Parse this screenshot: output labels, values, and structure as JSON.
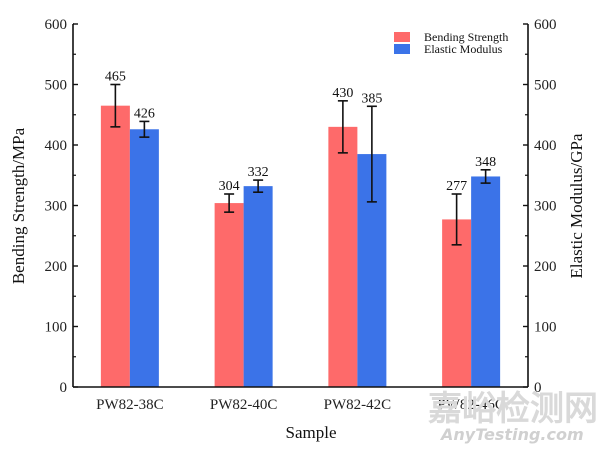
{
  "chart_data": {
    "type": "bar",
    "title": "",
    "xlabel": "Sample",
    "ylabel": "Bending Strength/MPa",
    "y2label": "Elastic Modulus/GPa",
    "categories": [
      "PW82-38C",
      "PW82-40C",
      "PW82-42C",
      "PW82-46C"
    ],
    "ylim": [
      0,
      600
    ],
    "y2lim": [
      0,
      600
    ],
    "yticks": [
      0,
      100,
      200,
      300,
      400,
      500,
      600
    ],
    "y2ticks": [
      0,
      100,
      200,
      300,
      400,
      500,
      600
    ],
    "grid": false,
    "legend_position": "top-right",
    "series": [
      {
        "name": "Bending Strength",
        "axis": "left",
        "color": "#fe6a6a",
        "values": [
          465,
          304,
          430,
          277
        ],
        "errors": [
          35,
          15,
          43,
          42
        ]
      },
      {
        "name": "Elastic Modulus",
        "axis": "right",
        "color": "#3b73e8",
        "values": [
          426,
          332,
          385,
          348
        ],
        "errors": [
          13,
          10,
          79,
          11
        ]
      }
    ]
  },
  "watermark": {
    "cn": "嘉峪检测网",
    "en": "AnyTesting.com"
  }
}
